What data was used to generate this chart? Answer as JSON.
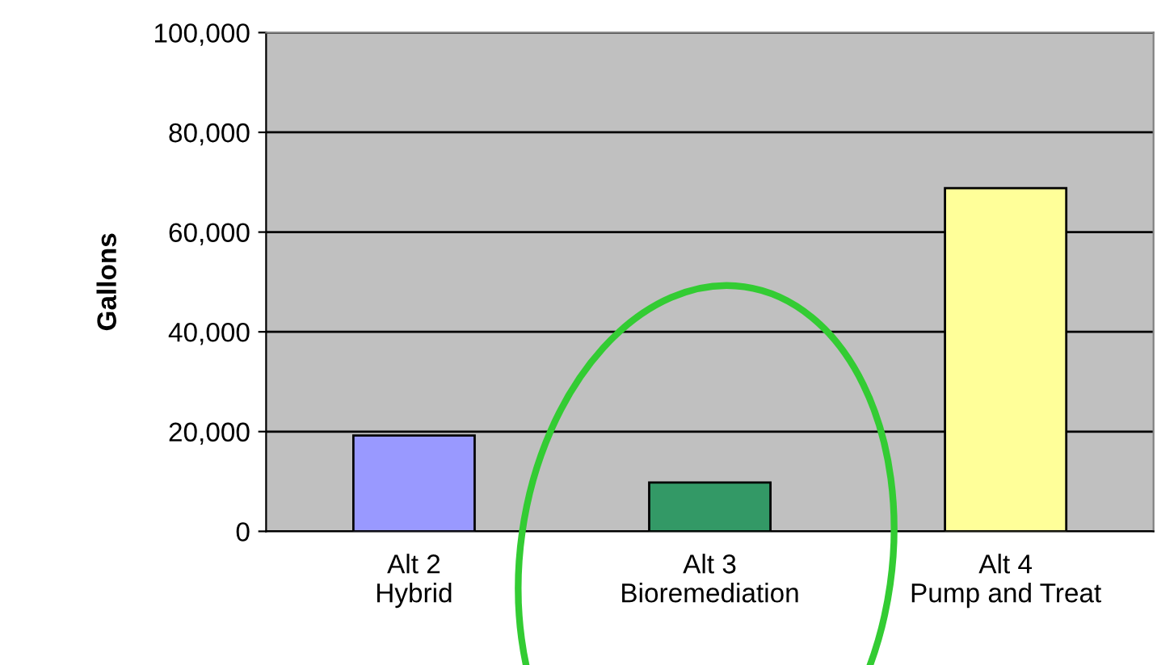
{
  "chart_data": {
    "type": "bar",
    "ylabel": "Gallons",
    "categories": [
      "Alt 2\nHybrid",
      "Alt 3\nBioremediation",
      "Alt 4\nPump and Treat"
    ],
    "values": [
      19200,
      9800,
      68800
    ],
    "colors": [
      "#9999ff",
      "#339966",
      "#ffff99"
    ],
    "ylim": [
      0,
      100000
    ],
    "yticks": [
      {
        "value": 0,
        "label": "0"
      },
      {
        "value": 20000,
        "label": "20,000"
      },
      {
        "value": 40000,
        "label": "40,000"
      },
      {
        "value": 60000,
        "label": "60,000"
      },
      {
        "value": 80000,
        "label": "80,000"
      },
      {
        "value": 100000,
        "label": "100,000"
      }
    ],
    "grid": "y",
    "legend": false
  }
}
